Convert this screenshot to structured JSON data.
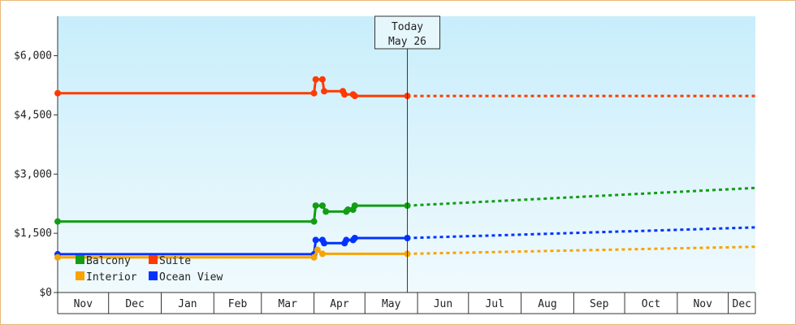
{
  "chart_data": {
    "type": "line",
    "title": "",
    "xlabel": "",
    "ylabel": "",
    "y_ticks": [
      "$0",
      "$1,500",
      "$3,000",
      "$4,500",
      "$6,000"
    ],
    "y_tick_values": [
      0,
      1500,
      3000,
      4500,
      6000
    ],
    "ylim": [
      0,
      7000
    ],
    "months": [
      "Nov",
      "Dec",
      "Jan",
      "Feb",
      "Mar",
      "Apr",
      "May",
      "Jun",
      "Jul",
      "Aug",
      "Sep",
      "Oct",
      "Nov",
      "Dec"
    ],
    "xlim": [
      "2024-11-01",
      "2025-12-17"
    ],
    "today": {
      "line1": "Today",
      "line2": "May 26",
      "date": "2025-05-26"
    },
    "grid": false,
    "legend_position": "bottom-left",
    "colors": {
      "Balcony": "#139d13",
      "Suite": "#ff3a00",
      "Interior": "#f7a300",
      "Ocean View": "#0033ff",
      "background_top": "#c8eefb",
      "background_bottom": "#f0fafd",
      "frame": "#e8b878"
    },
    "series": [
      {
        "name": "Suite",
        "history": [
          [
            "2024-11-01",
            5050
          ],
          [
            "2025-04-01",
            5050
          ],
          [
            "2025-04-02",
            5400
          ],
          [
            "2025-04-06",
            5400
          ],
          [
            "2025-04-07",
            5100
          ],
          [
            "2025-04-18",
            5100
          ],
          [
            "2025-04-19",
            5020
          ],
          [
            "2025-04-24",
            5020
          ],
          [
            "2025-04-25",
            4980
          ],
          [
            "2025-05-26",
            4980
          ]
        ],
        "forecast": [
          [
            "2025-05-26",
            4980
          ],
          [
            "2025-12-17",
            4980
          ]
        ]
      },
      {
        "name": "Balcony",
        "history": [
          [
            "2024-11-01",
            1800
          ],
          [
            "2025-04-01",
            1800
          ],
          [
            "2025-04-02",
            2200
          ],
          [
            "2025-04-06",
            2200
          ],
          [
            "2025-04-08",
            2050
          ],
          [
            "2025-04-20",
            2050
          ],
          [
            "2025-04-21",
            2100
          ],
          [
            "2025-04-24",
            2100
          ],
          [
            "2025-04-25",
            2200
          ],
          [
            "2025-05-26",
            2200
          ]
        ],
        "forecast": [
          [
            "2025-05-26",
            2200
          ],
          [
            "2025-12-17",
            2650
          ]
        ]
      },
      {
        "name": "Ocean View",
        "history": [
          [
            "2024-11-01",
            970
          ],
          [
            "2025-04-01",
            970
          ],
          [
            "2025-04-02",
            1330
          ],
          [
            "2025-04-06",
            1330
          ],
          [
            "2025-04-07",
            1250
          ],
          [
            "2025-04-19",
            1250
          ],
          [
            "2025-04-20",
            1330
          ],
          [
            "2025-04-24",
            1330
          ],
          [
            "2025-04-25",
            1380
          ],
          [
            "2025-05-26",
            1380
          ]
        ],
        "forecast": [
          [
            "2025-05-26",
            1380
          ],
          [
            "2025-12-17",
            1650
          ]
        ]
      },
      {
        "name": "Interior",
        "history": [
          [
            "2024-11-01",
            890
          ],
          [
            "2025-04-01",
            890
          ],
          [
            "2025-04-03",
            1080
          ],
          [
            "2025-04-06",
            980
          ],
          [
            "2025-05-26",
            980
          ]
        ],
        "forecast": [
          [
            "2025-05-26",
            980
          ],
          [
            "2025-12-17",
            1160
          ]
        ]
      }
    ],
    "legend": [
      "Balcony",
      "Suite",
      "Interior",
      "Ocean View"
    ]
  }
}
